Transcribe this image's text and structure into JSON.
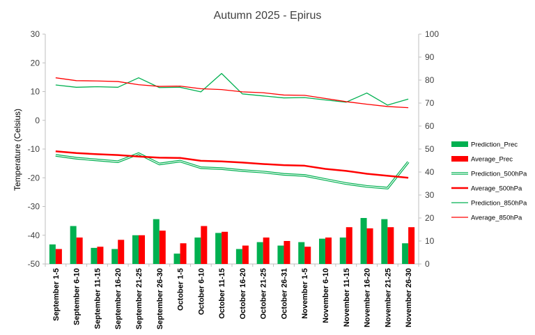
{
  "chart_data": {
    "type": "bar",
    "title": "Autumn 2025 - Epirus",
    "ylabel": "Temperature (Celsius)",
    "ylabel_right": "",
    "ylim": [
      -50,
      30
    ],
    "ylim_right": [
      0,
      100
    ],
    "yticks": [
      "30",
      "20",
      "10",
      "0",
      "-10",
      "-20",
      "-30",
      "-40",
      "-50"
    ],
    "yticks_right": [
      "100",
      "90",
      "80",
      "70",
      "60",
      "50",
      "40",
      "30",
      "20",
      "10",
      "0"
    ],
    "categories": [
      "September 1-5",
      "September 6-10",
      "September 11-15",
      "September 16-20",
      "September 21-25",
      "September 26-30",
      "October 1-5",
      "October 6-10",
      "October 11-15",
      "October 16-20",
      "October 21-25",
      "October 26-31",
      "November 1-5",
      "November 6-10",
      "November 11-15",
      "November 16-20",
      "November 21-25",
      "November 26-30"
    ],
    "series": [
      {
        "name": "Prediction_Prec",
        "kind": "bar",
        "axis": "right",
        "color": "#00b050",
        "values": [
          8.5,
          16.5,
          7,
          6.5,
          12.5,
          19.5,
          4.5,
          11.5,
          13.5,
          6.5,
          9.5,
          8,
          9.5,
          11,
          11.5,
          20,
          19.5,
          9
        ]
      },
      {
        "name": "Average_Prec",
        "kind": "bar",
        "axis": "right",
        "color": "#ff0000",
        "values": [
          6.5,
          11.5,
          7.5,
          10.5,
          12.5,
          14.5,
          9,
          16.5,
          14,
          8,
          11.5,
          10,
          7.5,
          11.5,
          16,
          15.5,
          16,
          16
        ]
      },
      {
        "name": "Prediction_500hPa",
        "kind": "line-double",
        "axis": "left",
        "color": "#00b050",
        "values": [
          -12.2,
          -13.2,
          -13.8,
          -14.4,
          -11.6,
          -15.2,
          -14.2,
          -16.5,
          -16.8,
          -17.5,
          -18,
          -18.8,
          -19.2,
          -20.6,
          -22,
          -23,
          -23.6,
          -14.5
        ]
      },
      {
        "name": "Average_500hPa",
        "kind": "line",
        "axis": "left",
        "color": "#ff0000",
        "width": 2.5,
        "values": [
          -10.8,
          -11.4,
          -11.8,
          -12.1,
          -12.6,
          -13.0,
          -13.1,
          -14.1,
          -14.3,
          -14.7,
          -15.2,
          -15.6,
          -15.8,
          -16.9,
          -17.6,
          -18.6,
          -19.3,
          -20.0
        ]
      },
      {
        "name": "Prediction_850hPa",
        "kind": "line",
        "axis": "left",
        "color": "#00b050",
        "width": 1.3,
        "values": [
          12.3,
          11.5,
          11.7,
          11.5,
          14.8,
          11.4,
          11.5,
          9.9,
          16.3,
          9.2,
          8.5,
          7.8,
          7.9,
          7.1,
          6.3,
          9.5,
          5.3,
          7.4
        ]
      },
      {
        "name": "Average_850hPa",
        "kind": "line",
        "axis": "left",
        "color": "#ff0000",
        "width": 1.3,
        "values": [
          14.8,
          13.8,
          13.7,
          13.5,
          12.4,
          11.8,
          11.9,
          11.0,
          10.7,
          9.9,
          9.6,
          8.8,
          8.7,
          7.6,
          6.5,
          5.6,
          4.8,
          4.4
        ]
      }
    ],
    "legend_position": "right",
    "grid": false
  }
}
